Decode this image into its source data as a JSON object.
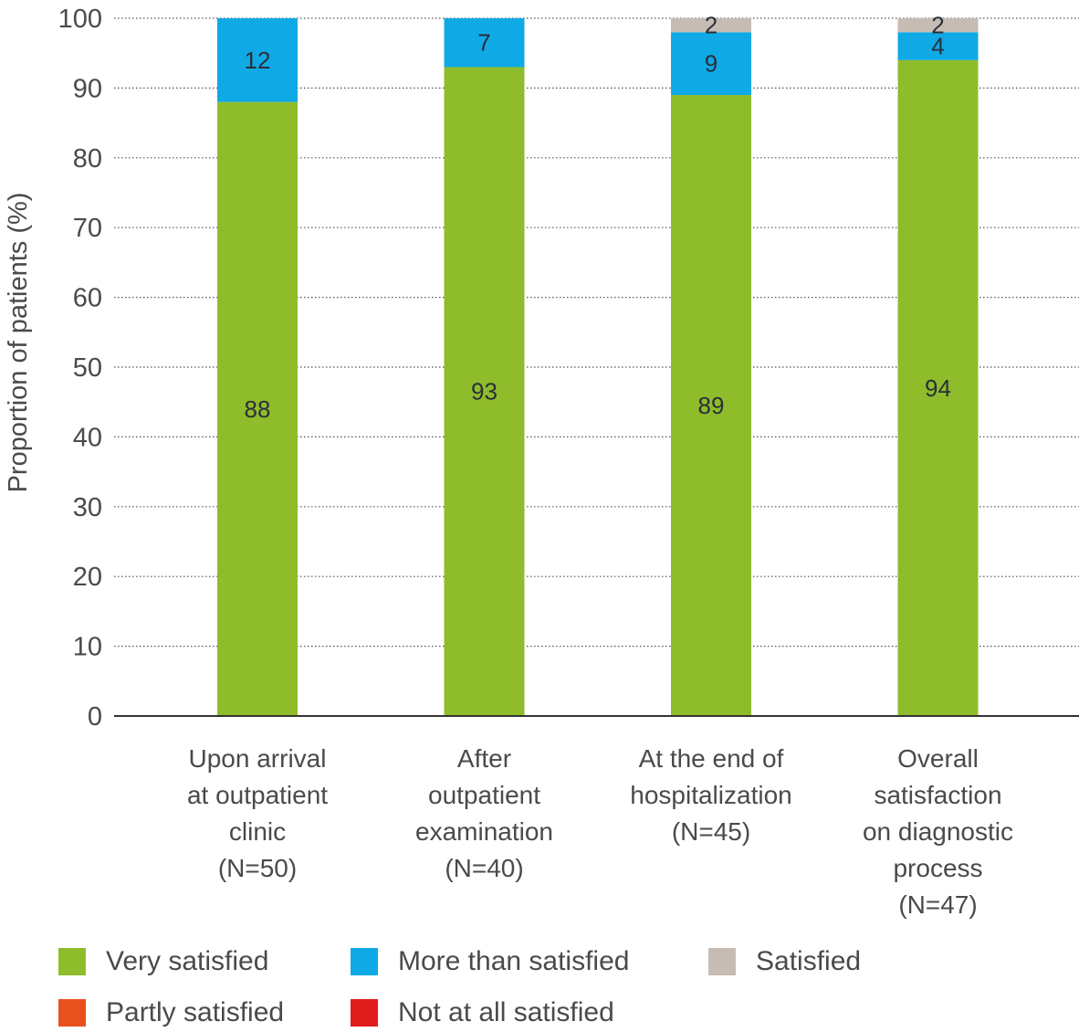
{
  "chart_data": {
    "type": "bar",
    "stacked": true,
    "title": "",
    "xlabel": "",
    "ylabel": "Proportion of patients (%)",
    "ylim": [
      0,
      100
    ],
    "yticks": [
      0,
      10,
      20,
      30,
      40,
      50,
      60,
      70,
      80,
      90,
      100
    ],
    "grid": true,
    "grid_style": "dotted horizontal",
    "legend_position": "bottom",
    "categories": [
      [
        "Upon arrival",
        "at outpatient",
        "clinic",
        "(N=50)"
      ],
      [
        "After",
        "outpatient",
        "examination",
        "(N=40)"
      ],
      [
        "At the end of",
        "hospitalization",
        "(N=45)"
      ],
      [
        "Overall",
        "satisfaction",
        "on diagnostic",
        "process",
        "(N=47)"
      ]
    ],
    "series": [
      {
        "name": "Very satisfied",
        "color": "#8fbc2a",
        "values": [
          88,
          93,
          89,
          94
        ]
      },
      {
        "name": "More than satisfied",
        "color": "#0fa9e6",
        "values": [
          12,
          7,
          9,
          4
        ]
      },
      {
        "name": "Satisfied",
        "color": "#c7bcb4",
        "values": [
          0,
          0,
          2,
          2
        ]
      },
      {
        "name": "Partly satisfied",
        "color": "#e8501e",
        "values": [
          0,
          0,
          0,
          0
        ]
      },
      {
        "name": "Not at all satisfied",
        "color": "#e01b1b",
        "values": [
          0,
          0,
          0,
          0
        ]
      }
    ]
  }
}
